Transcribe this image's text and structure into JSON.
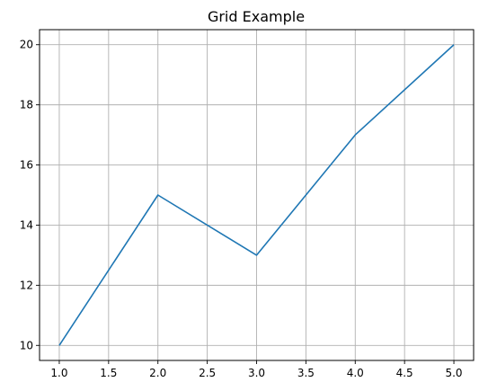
{
  "chart_data": {
    "type": "line",
    "title": "Grid Example",
    "xlabel": "",
    "ylabel": "",
    "grid": true,
    "x": [
      1,
      2,
      3,
      4,
      5
    ],
    "series": [
      {
        "values": [
          10,
          15,
          13,
          17,
          20
        ],
        "color": "#1f77b4"
      }
    ],
    "xlim": [
      0.8,
      5.2
    ],
    "ylim": [
      9.5,
      20.5
    ],
    "xticks": [
      "1.0",
      "1.5",
      "2.0",
      "2.5",
      "3.0",
      "3.5",
      "4.0",
      "4.5",
      "5.0"
    ],
    "yticks": [
      "10",
      "12",
      "14",
      "16",
      "18",
      "20"
    ]
  }
}
